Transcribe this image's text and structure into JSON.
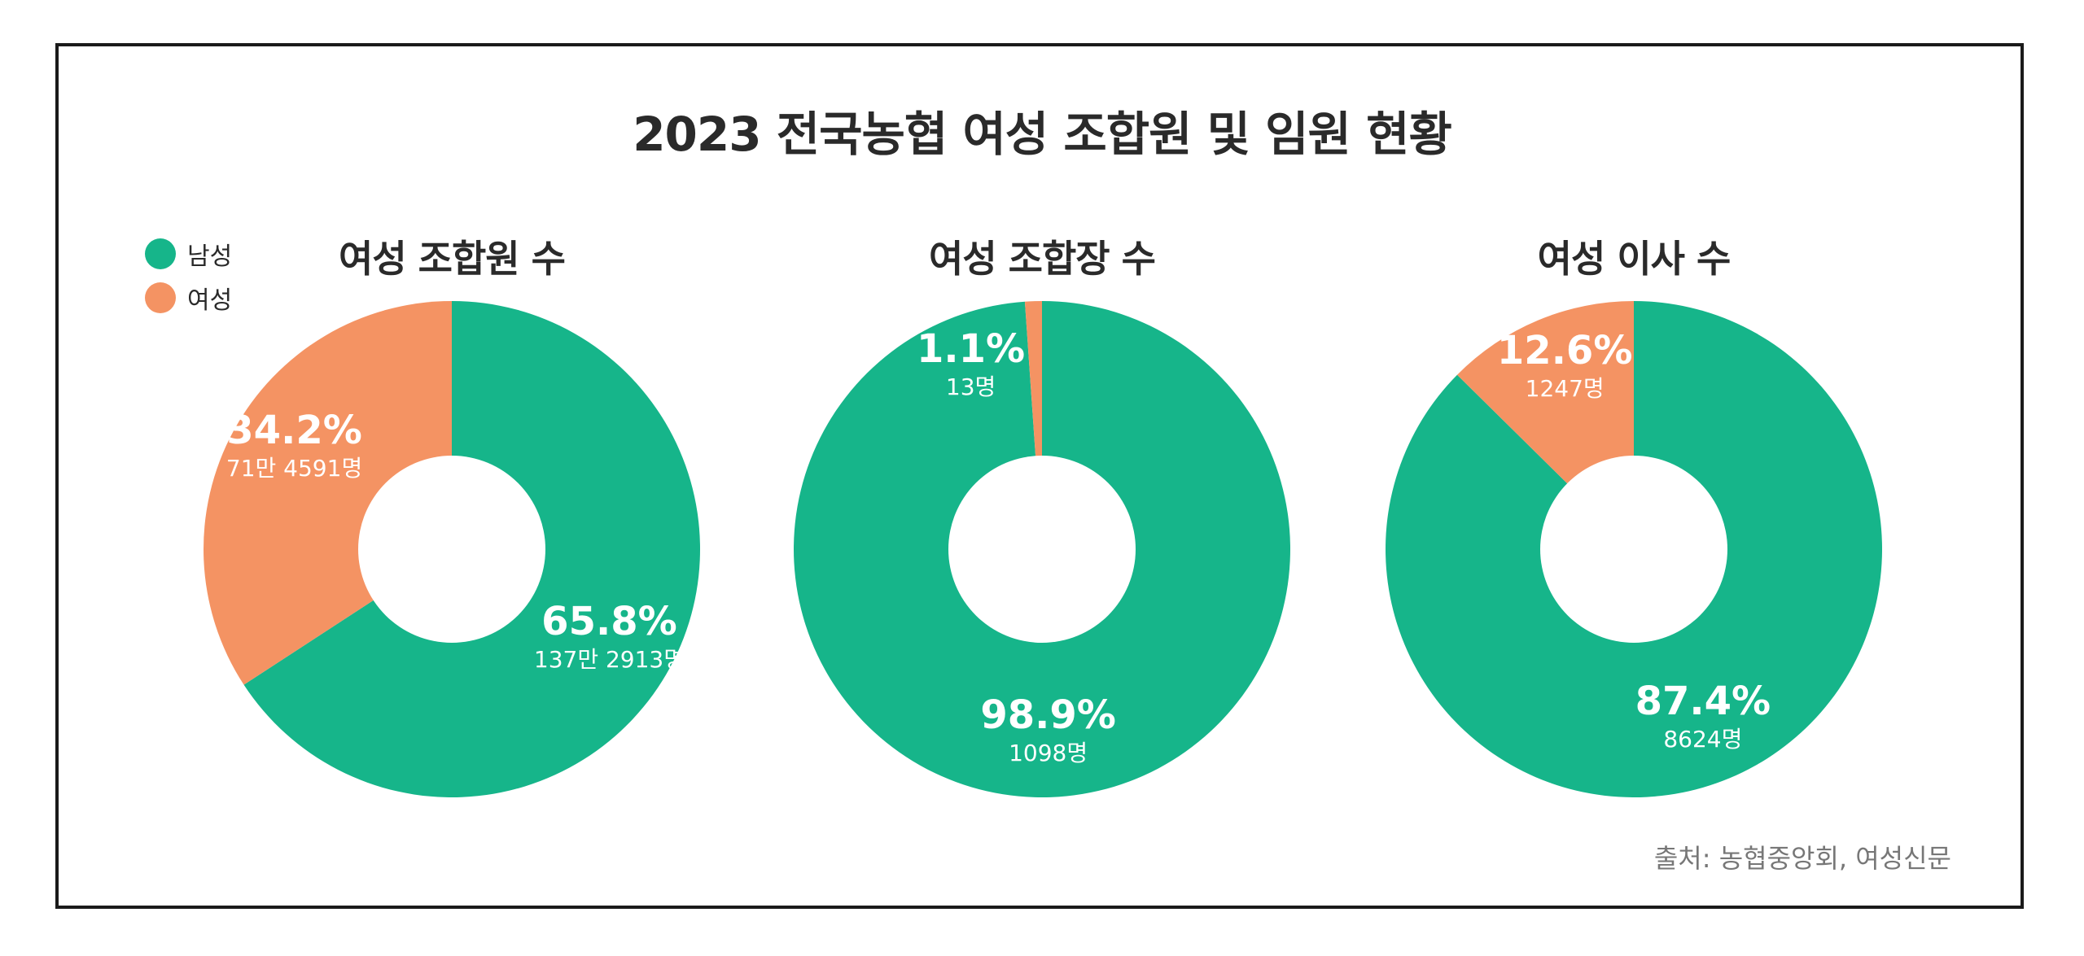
{
  "title": "2023 전국농협 여성 조합원 및 임원 현황",
  "source": "출처: 농협중앙회, 여성신문",
  "colors": {
    "male": "#16b58a",
    "female": "#f49363"
  },
  "legend": [
    {
      "name": "남성",
      "color": "#16b58a"
    },
    {
      "name": "여성",
      "color": "#f49363"
    }
  ],
  "chart_data": [
    {
      "type": "pie",
      "title": "여성 조합원 수",
      "categories": [
        "남성",
        "여성"
      ],
      "values": [
        65.8,
        34.2
      ],
      "labels": [
        {
          "percent": "65.8%",
          "count": "137만 2913명"
        },
        {
          "percent": "34.2%",
          "count": "71만 4591명"
        }
      ]
    },
    {
      "type": "pie",
      "title": "여성 조합장 수",
      "categories": [
        "남성",
        "여성"
      ],
      "values": [
        98.9,
        1.1
      ],
      "labels": [
        {
          "percent": "98.9%",
          "count": "1098명"
        },
        {
          "percent": "1.1%",
          "count": "13명"
        }
      ]
    },
    {
      "type": "pie",
      "title": "여성 이사 수",
      "categories": [
        "남성",
        "여성"
      ],
      "values": [
        87.4,
        12.6
      ],
      "labels": [
        {
          "percent": "87.4%",
          "count": "8624명"
        },
        {
          "percent": "12.6%",
          "count": "1247명"
        }
      ]
    }
  ]
}
